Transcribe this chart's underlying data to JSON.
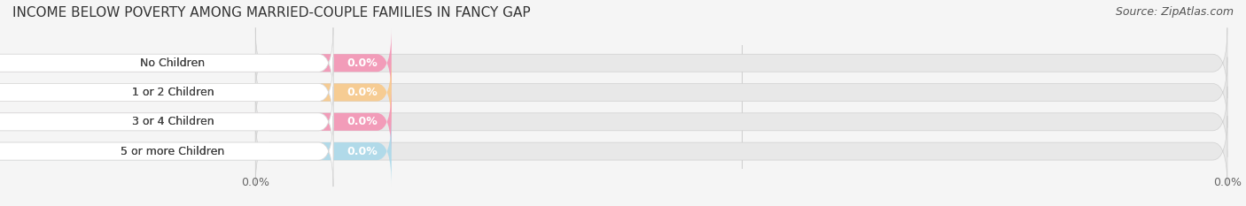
{
  "title": "INCOME BELOW POVERTY AMONG MARRIED-COUPLE FAMILIES IN FANCY GAP",
  "source": "Source: ZipAtlas.com",
  "categories": [
    "No Children",
    "1 or 2 Children",
    "3 or 4 Children",
    "5 or more Children"
  ],
  "values": [
    0.0,
    0.0,
    0.0,
    0.0
  ],
  "bar_colors": [
    "#f48fb1",
    "#f9c784",
    "#f48fb1",
    "#a8d8ea"
  ],
  "background_color": "#f5f5f5",
  "bar_bg_color": "#e8e8e8",
  "title_fontsize": 11,
  "source_fontsize": 9,
  "tick_fontsize": 9,
  "label_fontsize": 9,
  "xlim_data": [
    0,
    100
  ]
}
